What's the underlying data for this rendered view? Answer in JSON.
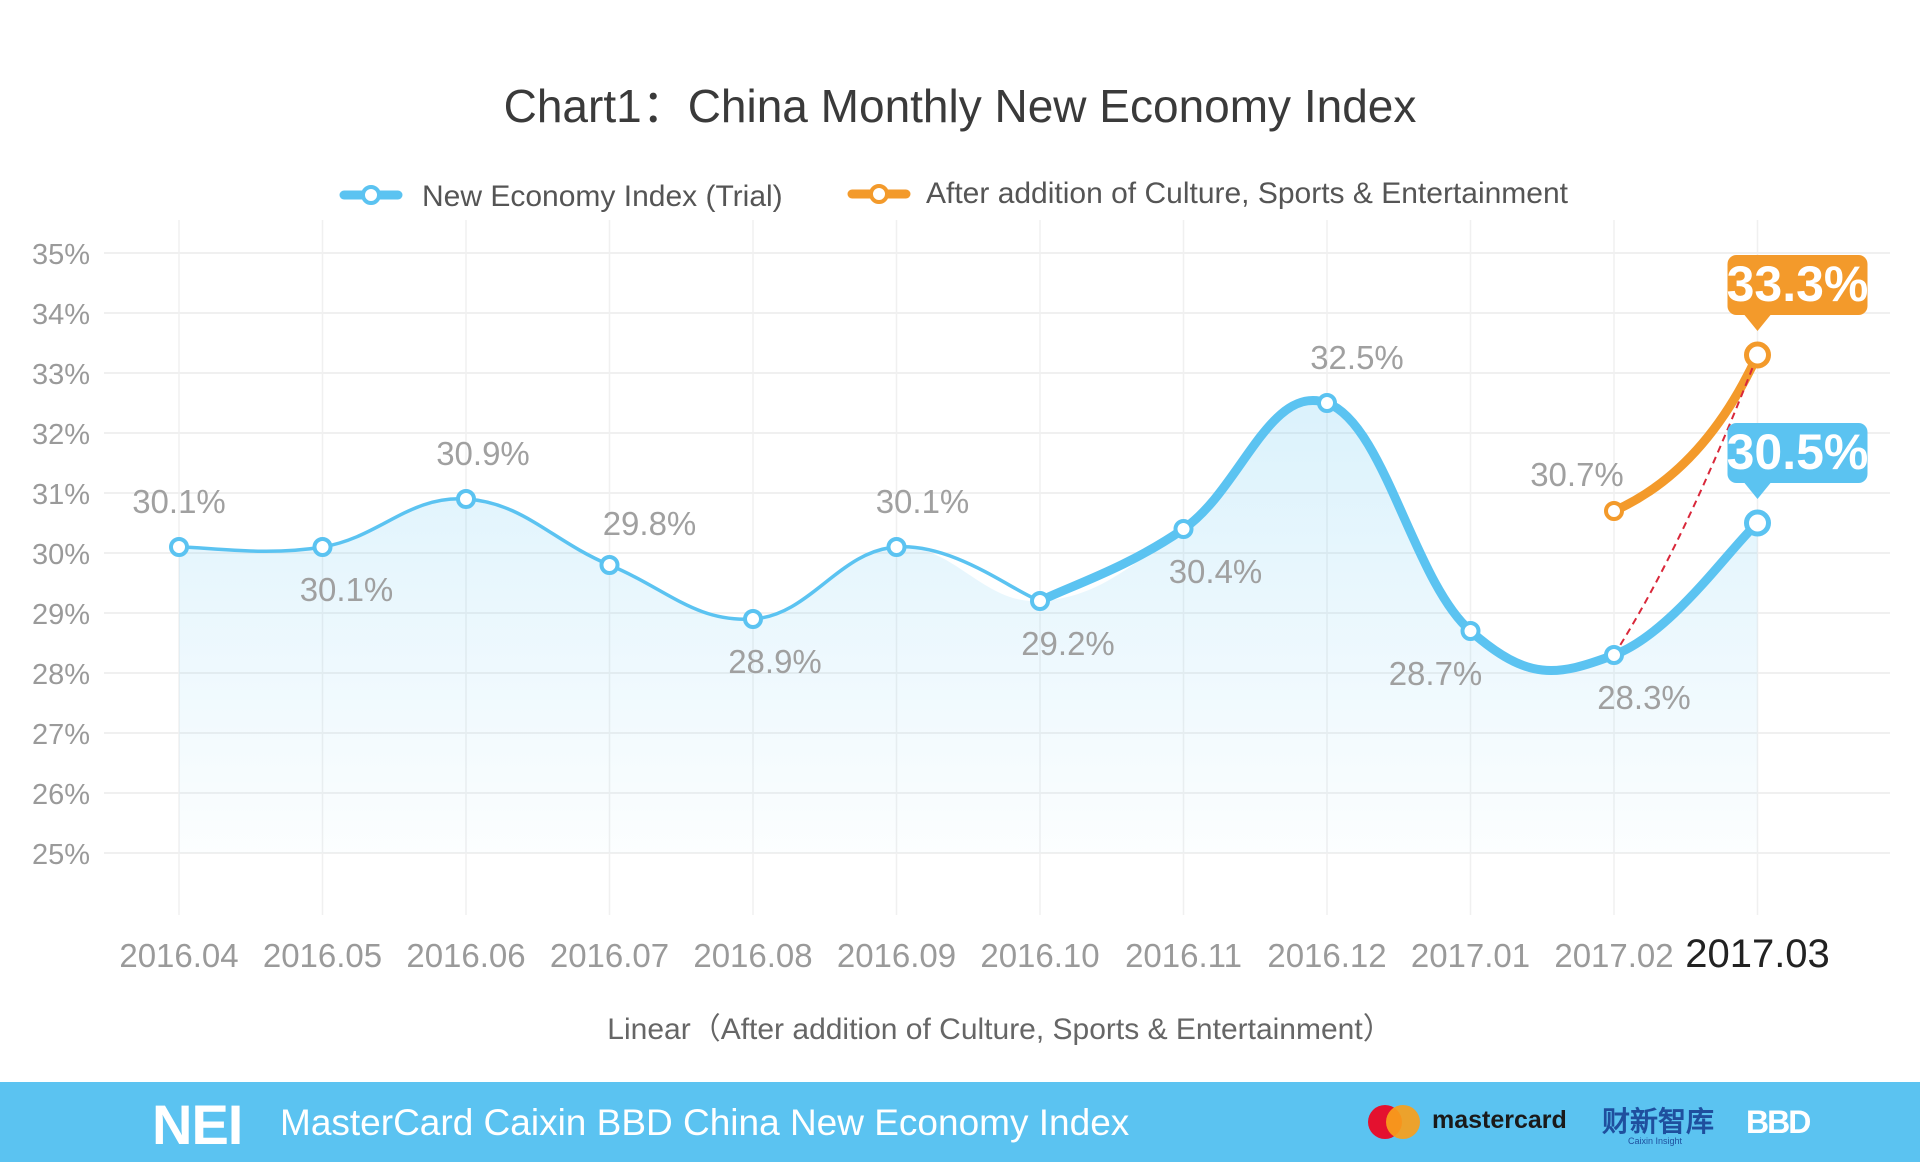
{
  "chart_data": {
    "type": "line",
    "title": "Chart1：China Monthly New Economy Index",
    "xlabel": "Linear（After addition of Culture, Sports & Entertainment）",
    "ylabel": "",
    "ylim": [
      24,
      35.5
    ],
    "y_ticks": [
      25,
      26,
      27,
      28,
      29,
      30,
      31,
      32,
      33,
      34,
      35
    ],
    "y_tick_labels": [
      "25%",
      "26%",
      "27%",
      "28%",
      "29%",
      "30%",
      "31%",
      "32%",
      "33%",
      "34%",
      "35%"
    ],
    "categories": [
      "2016.04",
      "2016.05",
      "2016.06",
      "2016.07",
      "2016.08",
      "2016.09",
      "2016.10",
      "2016.11",
      "2016.12",
      "2017.01",
      "2017.02",
      "2017.03"
    ],
    "grid": true,
    "legend_position": "top",
    "series": [
      {
        "name": "New Economy Index (Trial)",
        "color": "#5bc3f1",
        "values": [
          30.1,
          30.1,
          30.9,
          29.8,
          28.9,
          30.1,
          29.2,
          30.4,
          32.5,
          28.7,
          28.3,
          30.5
        ],
        "labels": [
          "30.1%",
          "30.1%",
          "30.9%",
          "29.8%",
          "28.9%",
          "30.1%",
          "29.2%",
          "30.4%",
          "32.5%",
          "28.7%",
          "28.3%",
          "30.5%"
        ]
      },
      {
        "name": "After addition of Culture, Sports & Entertainment",
        "color": "#f39a2b",
        "values": [
          null,
          null,
          null,
          null,
          null,
          null,
          null,
          null,
          null,
          null,
          30.7,
          33.3
        ],
        "labels": [
          "",
          "",
          "",
          "",
          "",
          "",
          "",
          "",
          "",
          "",
          "30.7%",
          "33.3%"
        ]
      }
    ]
  },
  "footer": {
    "brand": "NEI",
    "title": "MasterCard Caixin BBD China New Economy Index",
    "partner_1": "mastercard",
    "partner_2": "财新智库",
    "partner_2_sub": "Caixin Insight",
    "partner_3": "BBD"
  },
  "colors": {
    "accent_blue": "#5bc3f1",
    "accent_orange": "#f39a2b",
    "trend_line": "#d9283a"
  }
}
